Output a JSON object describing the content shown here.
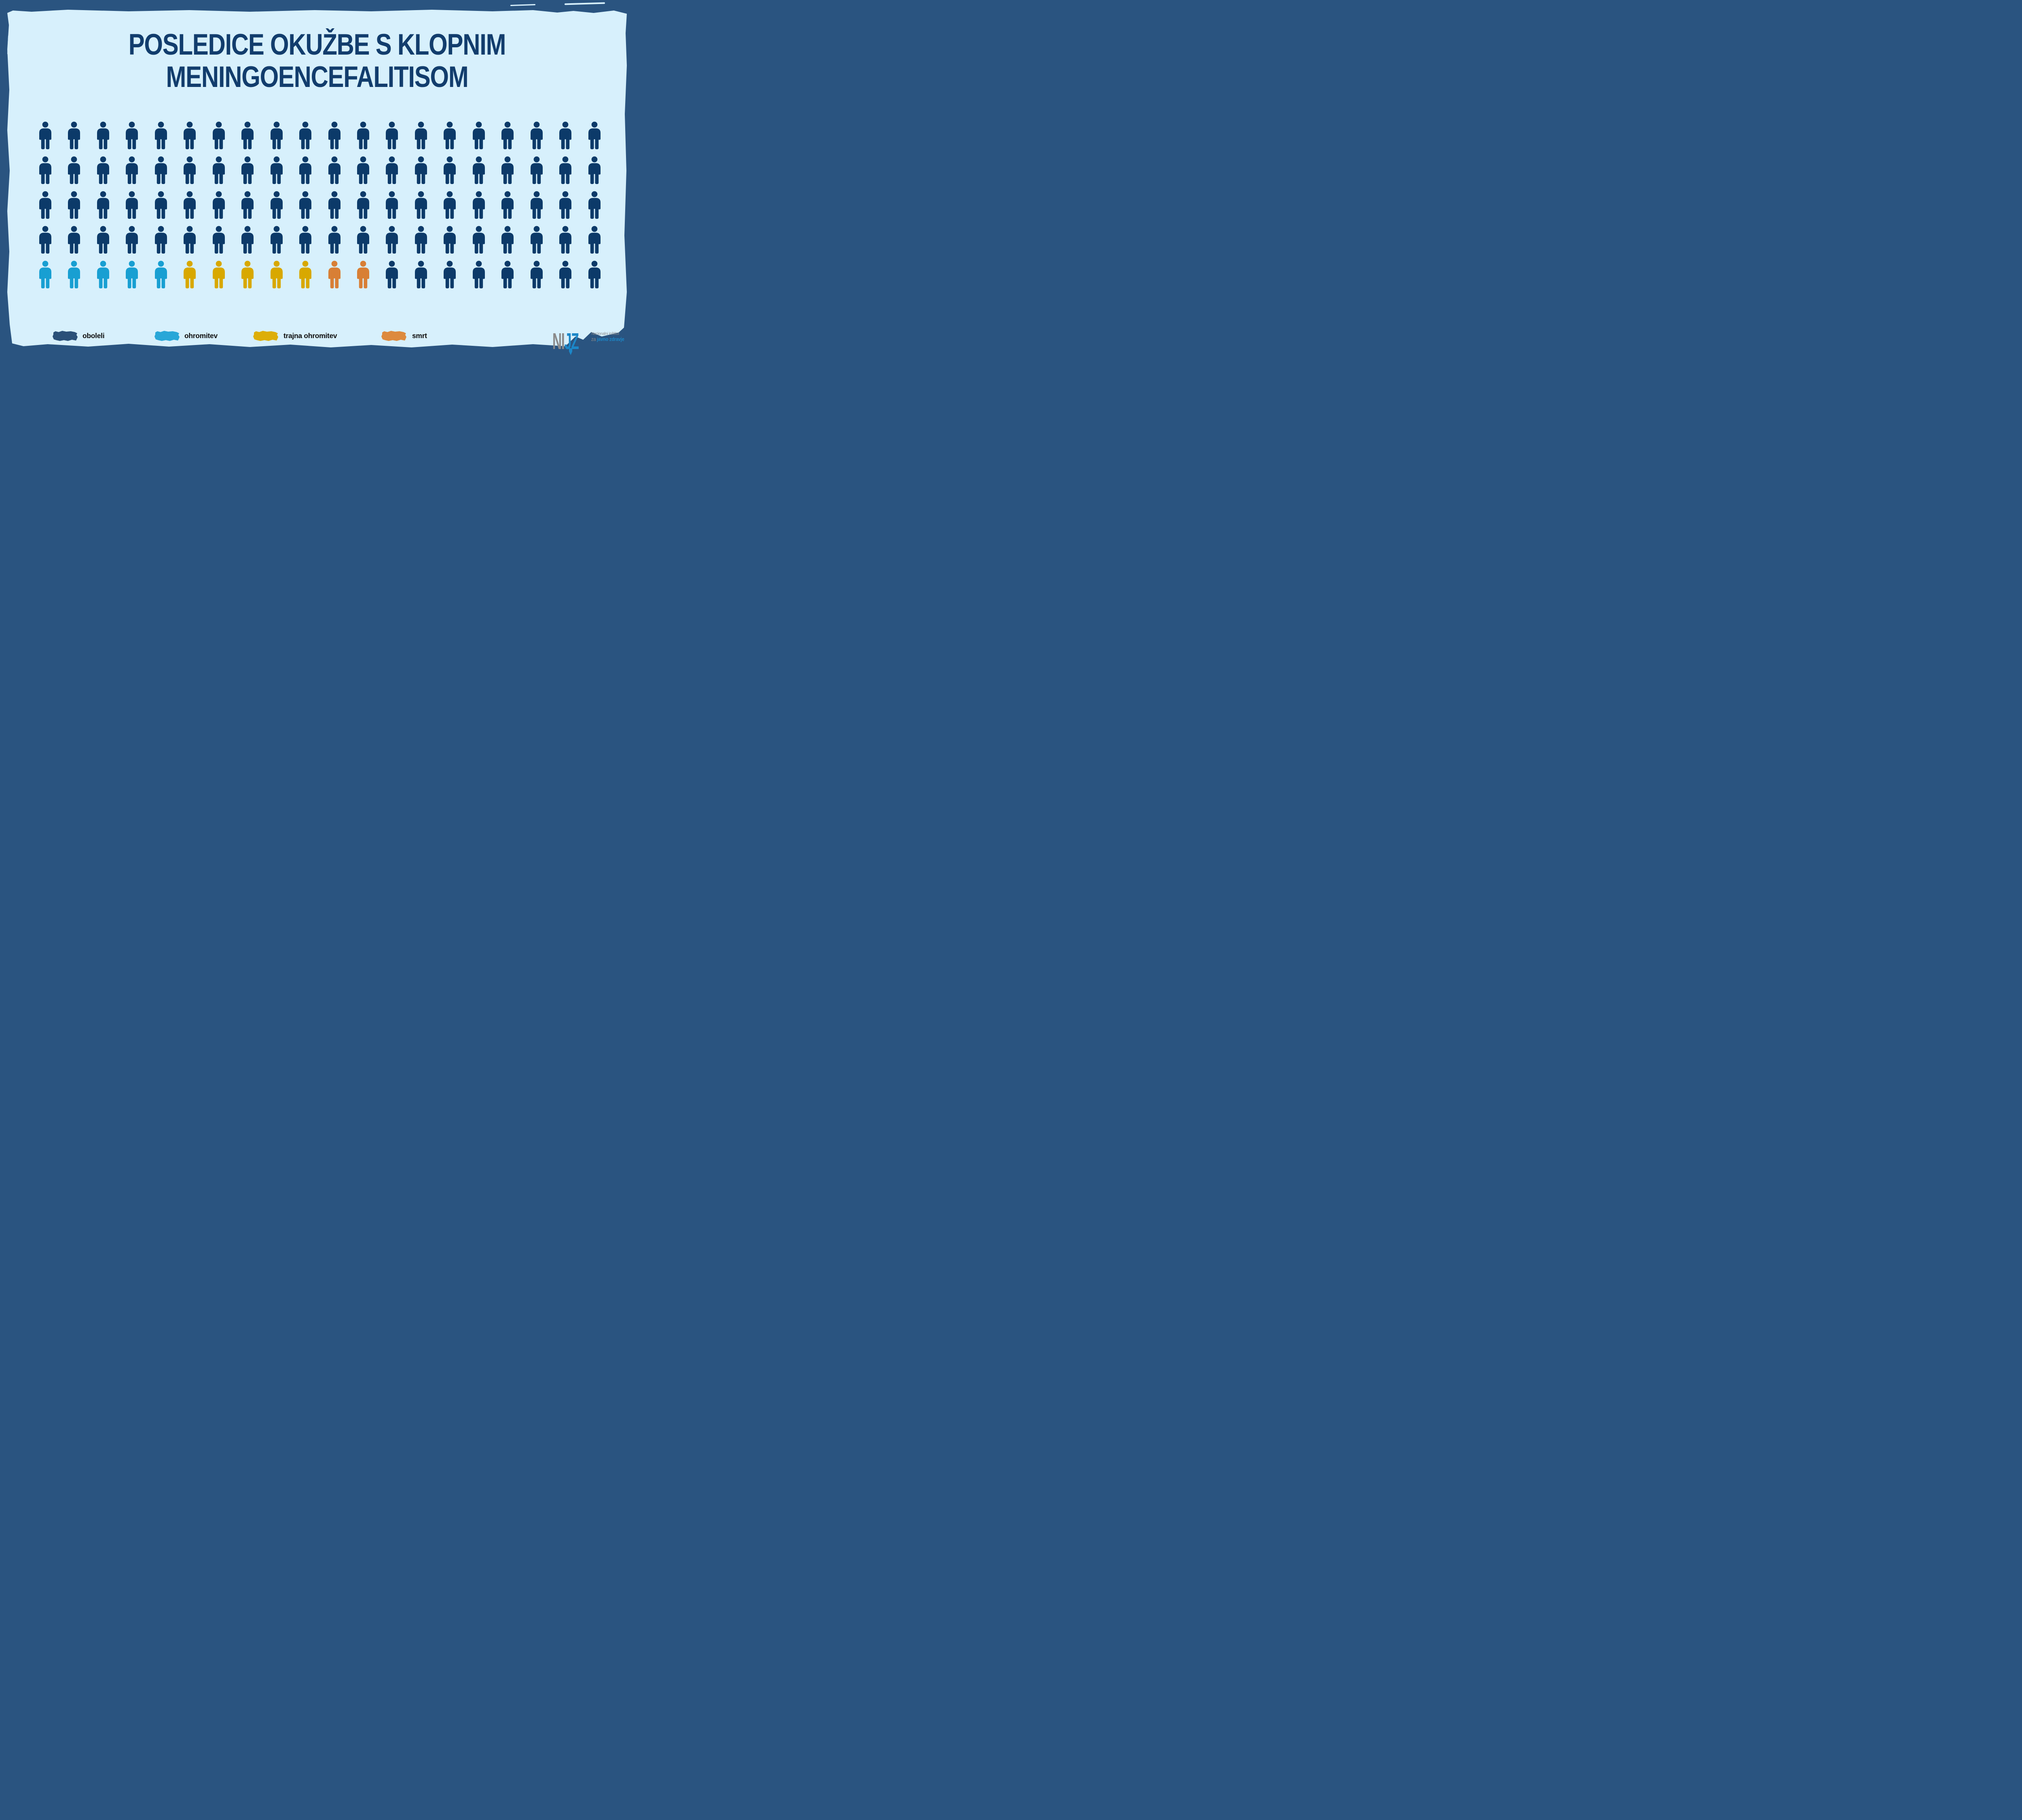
{
  "title": {
    "line1": "POSLEDICE OKUŽBE S KLOPNIM",
    "line2": "MENINGOENCEFALITISOM"
  },
  "chart_data": {
    "type": "pictogram",
    "title": "POSLEDICE OKUŽBE S KLOPNIM MENINGOENCEFALITISOM",
    "rows": 5,
    "columns": 20,
    "total_icons": 100,
    "legend_position": "bottom",
    "series": [
      {
        "name": "oboleli",
        "count": 88,
        "color": "#0c3a69"
      },
      {
        "name": "ohromitev",
        "count": 5,
        "color": "#189fd2"
      },
      {
        "name": "trajna ohromitev",
        "count": 5,
        "color": "#d8a800"
      },
      {
        "name": "smrt",
        "count": 2,
        "color": "#d87f35"
      }
    ],
    "rows_composition": [
      [
        "oboleli",
        20
      ],
      [
        "oboleli",
        20
      ],
      [
        "oboleli",
        20
      ],
      [
        "oboleli",
        20
      ],
      [
        "last_row",
        20
      ]
    ],
    "last_row_order": [
      "ohromitev",
      "ohromitev",
      "ohromitev",
      "ohromitev",
      "ohromitev",
      "trajna ohromitev",
      "trajna ohromitev",
      "trajna ohromitev",
      "trajna ohromitev",
      "trajna ohromitev",
      "smrt",
      "smrt",
      "oboleli",
      "oboleli",
      "oboleli",
      "oboleli",
      "oboleli",
      "oboleli",
      "oboleli",
      "oboleli"
    ]
  },
  "legend": {
    "items": [
      {
        "label": "oboleli",
        "color": "#2a5078"
      },
      {
        "label": "ohromitev",
        "color": "#29a7d8"
      },
      {
        "label": "trajna ohromitev",
        "color": "#ddae08"
      },
      {
        "label": "smrt",
        "color": "#dd8a3d"
      }
    ]
  },
  "logo": {
    "acronym_gray": "NI",
    "acronym_blue": "JZ",
    "line1": "Nacionalni inštitut",
    "line2_prefix": "za ",
    "line2_bold": "javno zdravje"
  },
  "colors": {
    "frame": "#2a5480",
    "panel": "#d7f0fc",
    "title": "#123d6d",
    "icon_navy": "#0c3a69",
    "legend_text": "#0e0e0e",
    "logo_gray": "#8a8a8a",
    "logo_blue": "#1c87c8"
  }
}
